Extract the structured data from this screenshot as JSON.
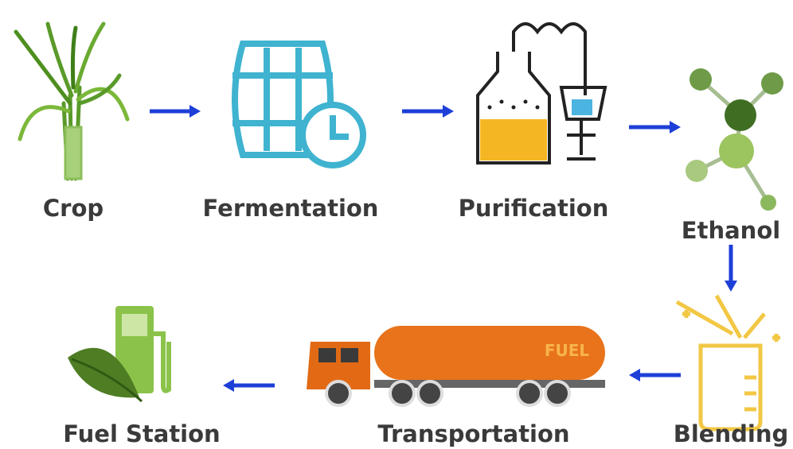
{
  "nodes": [
    {
      "label": "Crop"
    },
    {
      "label": "Fermentation"
    },
    {
      "label": "Purification"
    },
    {
      "label": "Ethanol"
    },
    {
      "label": "Blending"
    },
    {
      "label": "Transportation"
    },
    {
      "label": "Fuel Station"
    }
  ],
  "truck_text": "FUEL"
}
